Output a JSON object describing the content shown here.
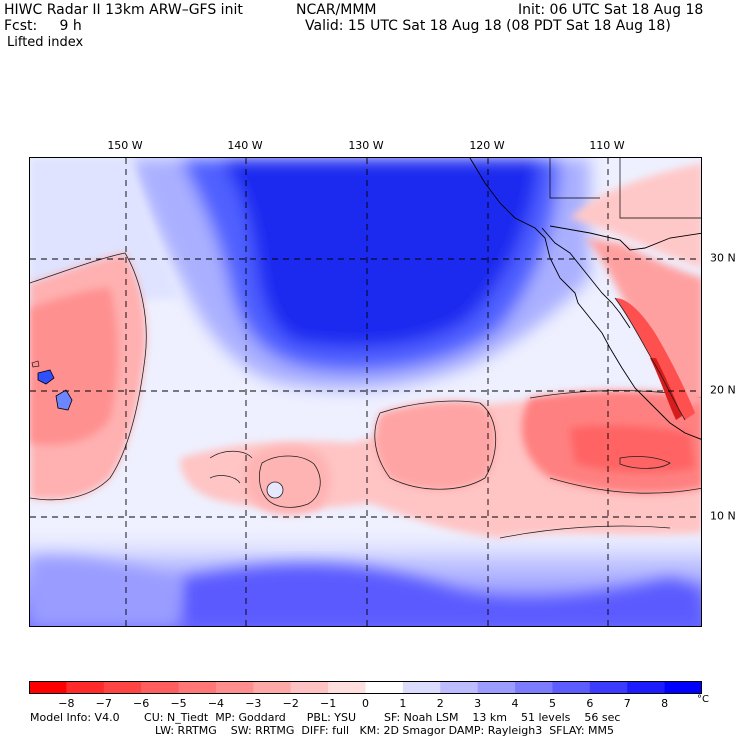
{
  "header": {
    "title": "HIWC Radar II 13km ARW–GFS init",
    "org": "NCAR/MMM",
    "init": "Init: 06 UTC Sat 18 Aug 18",
    "fcst": "Fcst:     9 h",
    "valid": "Valid: 15 UTC Sat 18 Aug 18 (08 PDT Sat 18 Aug 18)",
    "field": "Lifted index"
  },
  "map": {
    "lon_labels": [
      "150 W",
      "140 W",
      "130 W",
      "120 W",
      "110 W"
    ],
    "lat_labels": [
      "30 N",
      "20 N",
      "10 N"
    ]
  },
  "colorbar": {
    "ticks": [
      "−8",
      "−7",
      "−6",
      "−5",
      "−4",
      "−3",
      "−2",
      "−1",
      "0",
      "1",
      "2",
      "3",
      "4",
      "5",
      "6",
      "7",
      "8"
    ],
    "unit": "°C",
    "colors": [
      "#ff0000",
      "#ff2a2a",
      "#ff4444",
      "#ff5e5e",
      "#ff7777",
      "#ff8f8f",
      "#ffa8a8",
      "#ffc2c2",
      "#ffdede",
      "#ffffff",
      "#dcdcff",
      "#bcbcff",
      "#9c9cff",
      "#7c7cff",
      "#5c5cff",
      "#3c3cff",
      "#1c1cff",
      "#0000ff"
    ]
  },
  "footer": {
    "line1": "Model Info: V4.0       CU: N_Tiedt  MP: Goddard      PBL: YSU        SF: Noah LSM    13 km    51 levels    56 sec",
    "line2": "LW: RRTMG    SW: RRTMG  DIFF: full   KM: 2D Smagor DAMP: Rayleigh3  SFLAY: MM5"
  }
}
